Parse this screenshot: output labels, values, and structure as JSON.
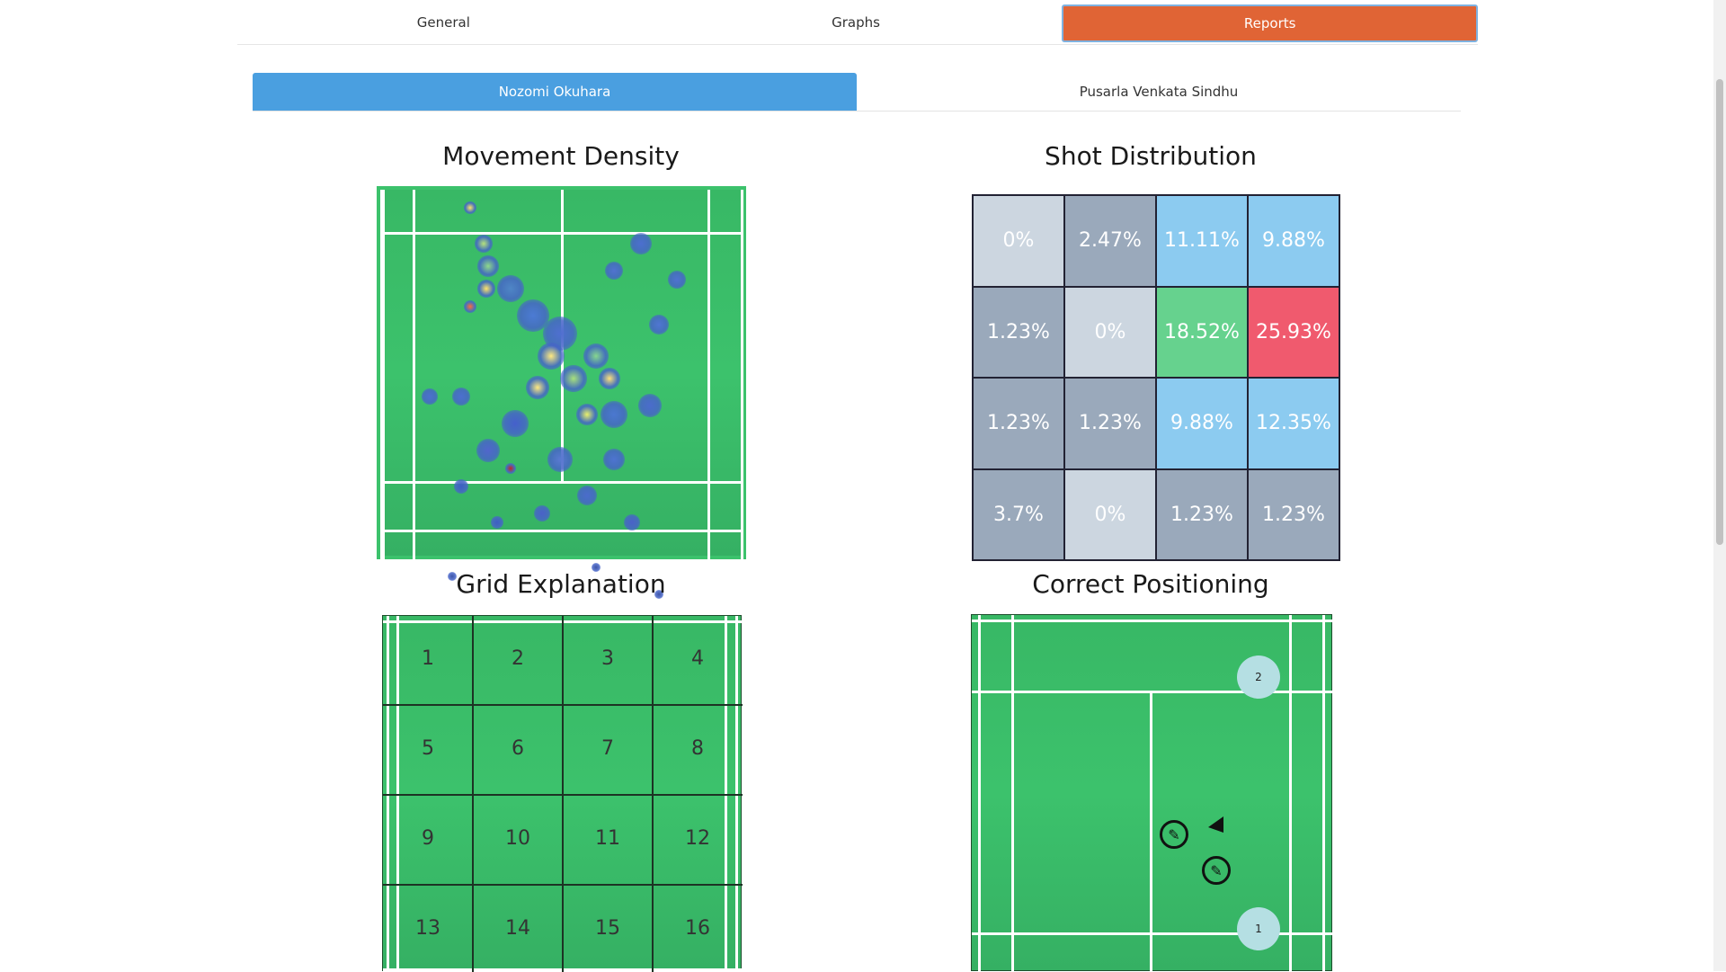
{
  "topnav": {
    "tabs": [
      {
        "label": "General"
      },
      {
        "label": "Graphs"
      },
      {
        "label": "Reports"
      }
    ]
  },
  "players": {
    "tabs": [
      {
        "label": "Nozomi Okuhara"
      },
      {
        "label": "Pusarla Venkata Sindhu"
      }
    ]
  },
  "sections": {
    "movement_title": "Movement Density",
    "shot_title": "Shot Distribution",
    "grid_title": "Grid Explanation",
    "positioning_title": "Correct Positioning"
  },
  "chart_data": {
    "type": "heatmap",
    "title": "Shot Distribution",
    "rows": [
      [
        "0%",
        "2.47%",
        "11.11%",
        "9.88%"
      ],
      [
        "1.23%",
        "0%",
        "18.52%",
        "25.93%"
      ],
      [
        "1.23%",
        "1.23%",
        "9.88%",
        "12.35%"
      ],
      [
        "3.7%",
        "0%",
        "1.23%",
        "1.23%"
      ]
    ],
    "colors": [
      [
        "#ccd6e0",
        "#9aa9bb",
        "#8ccbf0",
        "#8ccbf0"
      ],
      [
        "#9aa9bb",
        "#ccd6e0",
        "#66d28e",
        "#f05a6e"
      ],
      [
        "#9aa9bb",
        "#9aa9bb",
        "#8ccbf0",
        "#8ccbf0"
      ],
      [
        "#9aa9bb",
        "#ccd6e0",
        "#9aa9bb",
        "#9aa9bb"
      ]
    ]
  },
  "grid_numbers": [
    "1",
    "2",
    "3",
    "4",
    "5",
    "6",
    "7",
    "8",
    "9",
    "10",
    "11",
    "12",
    "13",
    "14",
    "15",
    "16"
  ],
  "positioning": {
    "circle_1": "1",
    "circle_2": "2",
    "player_icon": "racket-icon"
  }
}
